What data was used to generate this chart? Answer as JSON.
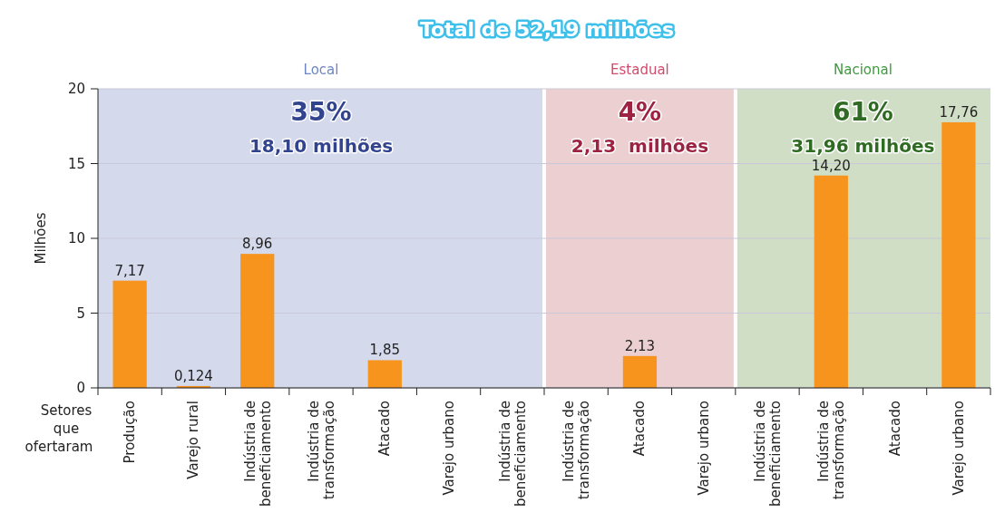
{
  "chart_data": [
    {
      "type": "bar",
      "title": "Total de 52,19 milhões",
      "subtitle": "Local",
      "ylabel": "Milhões",
      "xlabel": "Setores que ofertaram",
      "categories": [
        "Produção",
        "Varejo rural",
        "Indústria de beneficiamento",
        "Indústria de transformação",
        "Atacado",
        "Varejo urbano",
        "Indústria de beneficiamento"
      ],
      "values": [
        7.17,
        0.124,
        8.96,
        null,
        1.85,
        null,
        null
      ],
      "value_labels": [
        "7,17",
        "0,124",
        "8,96",
        null,
        "1,85",
        null,
        null
      ],
      "color": "#f7941d",
      "ylim": [
        0,
        20
      ],
      "yticks": [
        0,
        5,
        10,
        15,
        20
      ],
      "grid": "y",
      "annotations": [
        "35%",
        "18,10 milhões"
      ]
    },
    {
      "type": "bar",
      "subtitle": "Estadual",
      "categories": [
        "Indústria de transformação",
        "Atacado",
        "Varejo urbano"
      ],
      "values": [
        null,
        2.13,
        null
      ],
      "value_labels": [
        null,
        "2,13",
        null
      ],
      "color": "#f7941d",
      "ylim": [
        0,
        20
      ],
      "yticks": [
        0,
        5,
        10,
        15,
        20
      ],
      "tick_labels": "x",
      "grid": "y",
      "annotations": [
        "4%",
        "2,13  milhões"
      ]
    },
    {
      "type": "bar",
      "subtitle": "Nacional",
      "categories": [
        "Indústria de beneficiamento",
        "Indústria de transformação",
        "Atacado",
        "Varejo urbano"
      ],
      "values": [
        null,
        14.2,
        null,
        17.76
      ],
      "value_labels": [
        null,
        "14,20",
        null,
        "17,76"
      ],
      "color": "#f7941d",
      "ylim": [
        0,
        20
      ],
      "yticks": [
        0,
        5,
        10,
        15,
        20
      ],
      "tick_labels": "x",
      "grid": "y",
      "annotations": [
        "61%",
        "31,96 milhões"
      ]
    }
  ]
}
